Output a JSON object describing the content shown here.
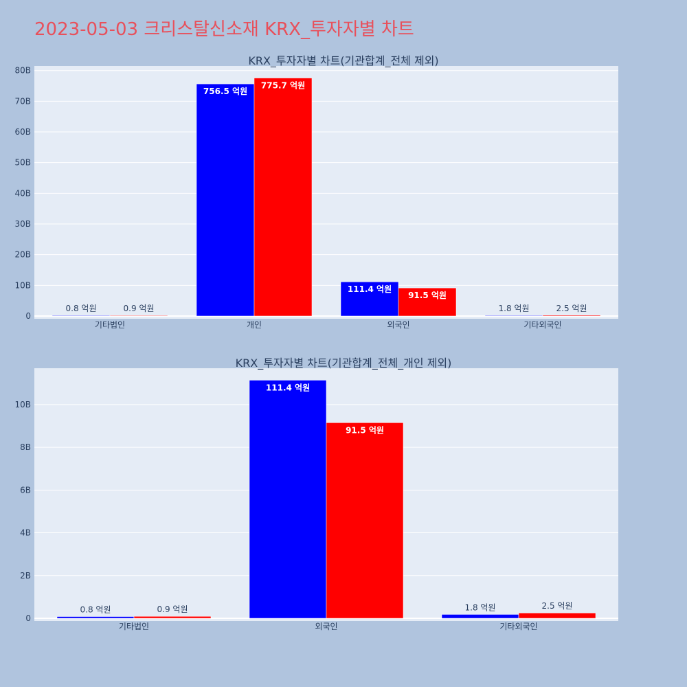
{
  "title": "2023-05-03 크리스탈신소재 KRX_투자자별 차트",
  "colors": {
    "background": "#b0c4de",
    "plot_bg": "#e5ecf6",
    "title": "#e8505b",
    "buy": "#0000ff",
    "sell": "#ff0000"
  },
  "chart_data": [
    {
      "type": "bar",
      "title": "KRX_투자자별 차트(기관합계_전체 제외)",
      "categories": [
        "기타법인",
        "개인",
        "외국인",
        "기타외국인"
      ],
      "series": [
        {
          "color": "#0000ff",
          "values": [
            0.08,
            75.65,
            11.14,
            0.18
          ],
          "labels": [
            "0.8 억원",
            "756.5 억원",
            "111.4 억원",
            "1.8 억원"
          ]
        },
        {
          "color": "#ff0000",
          "values": [
            0.09,
            77.57,
            9.15,
            0.25
          ],
          "labels": [
            "0.9 억원",
            "775.7 억원",
            "91.5 억원",
            "2.5 억원"
          ]
        }
      ],
      "yticks": [
        0,
        10,
        20,
        30,
        40,
        50,
        60,
        70,
        80
      ],
      "ytick_labels": [
        "0",
        "10B",
        "20B",
        "30B",
        "40B",
        "50B",
        "60B",
        "70B",
        "80B"
      ],
      "ylim": [
        0,
        81.5
      ],
      "grid": true
    },
    {
      "type": "bar",
      "title": "KRX_투자자별 차트(기관합계_전체_개인 제외)",
      "categories": [
        "기타법인",
        "외국인",
        "기타외국인"
      ],
      "series": [
        {
          "color": "#0000ff",
          "values": [
            0.08,
            11.14,
            0.18
          ],
          "labels": [
            "0.8 억원",
            "111.4 억원",
            "1.8 억원"
          ]
        },
        {
          "color": "#ff0000",
          "values": [
            0.09,
            9.15,
            0.25
          ],
          "labels": [
            "0.9 억원",
            "91.5 억원",
            "2.5 억원"
          ]
        }
      ],
      "yticks": [
        0,
        2,
        4,
        6,
        8,
        10
      ],
      "ytick_labels": [
        "0",
        "2B",
        "4B",
        "6B",
        "8B",
        "10B"
      ],
      "ylim": [
        0,
        11.7
      ],
      "grid": true
    }
  ]
}
